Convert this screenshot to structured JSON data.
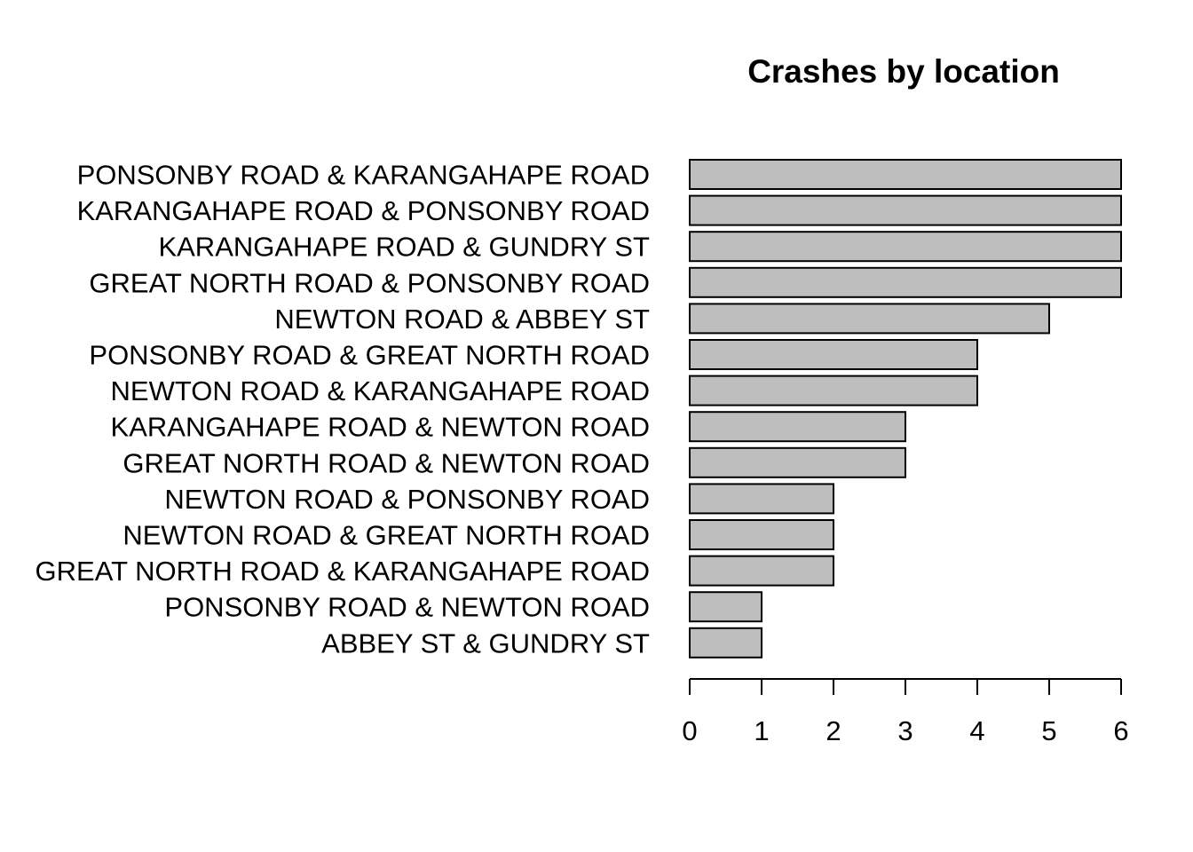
{
  "chart_data": {
    "type": "bar",
    "orientation": "horizontal",
    "title": "Crashes by location",
    "xlabel": "",
    "ylabel": "",
    "xlim": [
      0,
      6
    ],
    "x_ticks": [
      0,
      1,
      2,
      3,
      4,
      5,
      6
    ],
    "bar_color": "#bebebe",
    "grid": false,
    "categories": [
      "PONSONBY ROAD & KARANGAHAPE ROAD",
      "KARANGAHAPE ROAD & PONSONBY ROAD",
      "KARANGAHAPE ROAD & GUNDRY ST",
      "GREAT NORTH ROAD & PONSONBY ROAD",
      "NEWTON ROAD & ABBEY ST",
      "PONSONBY ROAD & GREAT NORTH ROAD",
      "NEWTON ROAD & KARANGAHAPE ROAD",
      "KARANGAHAPE ROAD & NEWTON ROAD",
      "GREAT NORTH ROAD & NEWTON ROAD",
      "NEWTON ROAD & PONSONBY ROAD",
      "NEWTON ROAD & GREAT NORTH ROAD",
      "GREAT NORTH ROAD & KARANGAHAPE ROAD",
      "PONSONBY ROAD & NEWTON ROAD",
      "ABBEY ST & GUNDRY ST"
    ],
    "values": [
      6,
      6,
      6,
      6,
      5,
      4,
      4,
      3,
      3,
      2,
      2,
      2,
      1,
      1
    ]
  }
}
